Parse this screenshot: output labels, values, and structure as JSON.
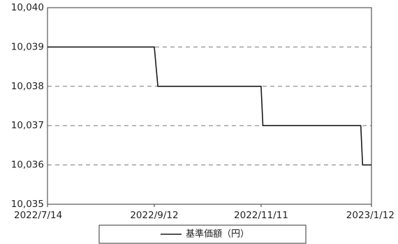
{
  "chart_data": {
    "type": "line",
    "title": "",
    "xlabel": "",
    "ylabel": "",
    "x_ticks": [
      "2022/7/14",
      "2022/9/12",
      "2022/11/11",
      "2023/1/12"
    ],
    "y_ticks": [
      "10,040",
      "10,039",
      "10,038",
      "10,037",
      "10,036",
      "10,035"
    ],
    "xlim": [
      "2022-07-14",
      "2023-01-12"
    ],
    "ylim": [
      10035,
      10040
    ],
    "grid": "horizontal dashed",
    "legend_position": "bottom",
    "series": [
      {
        "name": "基準価額（円）",
        "color": "#1a1a1a",
        "points": [
          {
            "x": "2022-07-14",
            "y": 10039
          },
          {
            "x": "2022-09-12",
            "y": 10039
          },
          {
            "x": "2022-09-14",
            "y": 10038
          },
          {
            "x": "2022-11-11",
            "y": 10038
          },
          {
            "x": "2022-11-12",
            "y": 10037
          },
          {
            "x": "2023-01-06",
            "y": 10037
          },
          {
            "x": "2023-01-07",
            "y": 10036
          },
          {
            "x": "2023-01-12",
            "y": 10036
          }
        ]
      }
    ]
  }
}
